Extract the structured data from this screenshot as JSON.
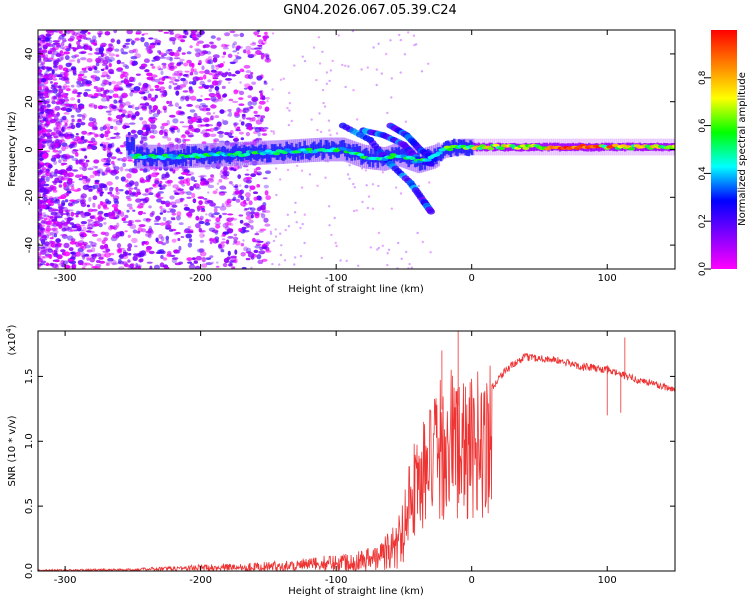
{
  "title": "GN04.2026.067.05.39.C24",
  "chart_data": [
    {
      "type": "heatmap",
      "xlabel": "Height of straight line (km)",
      "ylabel": "Frequency (Hz)",
      "xlim": [
        -320,
        150
      ],
      "ylim": [
        -50,
        50
      ],
      "xticks": [
        -300,
        -200,
        -100,
        0,
        100
      ],
      "yticks": [
        -40,
        -20,
        0,
        20,
        40
      ],
      "colorbar": {
        "label": "Normalized spectral amplitude",
        "range": [
          0,
          1
        ],
        "ticks": [
          "0.0",
          "0.2",
          "0.4",
          "0.6",
          "0.8"
        ],
        "colors": [
          "#ff00ff",
          "#8000ff",
          "#0000ff",
          "#00ffff",
          "#00ff00",
          "#ffff00",
          "#ff8000",
          "#ff0000"
        ]
      },
      "ridge": [
        {
          "x": -250,
          "f": -3
        },
        {
          "x": -220,
          "f": -3
        },
        {
          "x": -180,
          "f": -2
        },
        {
          "x": -140,
          "f": -1
        },
        {
          "x": -110,
          "f": 0
        },
        {
          "x": -95,
          "f": 0
        },
        {
          "x": -80,
          "f": -3
        },
        {
          "x": -65,
          "f": -4
        },
        {
          "x": -55,
          "f": -2
        },
        {
          "x": -40,
          "f": -5
        },
        {
          "x": -28,
          "f": -3
        },
        {
          "x": -20,
          "f": 0
        },
        {
          "x": -10,
          "f": 1
        },
        {
          "x": 0,
          "f": 1
        },
        {
          "x": 50,
          "f": 1
        },
        {
          "x": 100,
          "f": 1
        },
        {
          "x": 150,
          "f": 1
        }
      ]
    },
    {
      "type": "line",
      "xlabel": "Height of straight line (km)",
      "ylabel": "SNR (10 * v/v)",
      "yscale_label": "(x10",
      "yscale_exp": "4",
      "xlim": [
        -320,
        150
      ],
      "ylim": [
        0,
        1.85
      ],
      "xticks": [
        -300,
        -200,
        -100,
        0,
        100
      ],
      "yticks": [
        "0.0",
        "0.5",
        "1.0",
        "1.5"
      ],
      "color": "#ee3333",
      "envelope": [
        {
          "x": -320,
          "y": 0.01
        },
        {
          "x": -250,
          "y": 0.02
        },
        {
          "x": -200,
          "y": 0.05
        },
        {
          "x": -150,
          "y": 0.07
        },
        {
          "x": -120,
          "y": 0.1
        },
        {
          "x": -90,
          "y": 0.15
        },
        {
          "x": -70,
          "y": 0.2
        },
        {
          "x": -55,
          "y": 0.4
        },
        {
          "x": -45,
          "y": 0.8
        },
        {
          "x": -35,
          "y": 1.0
        },
        {
          "x": -25,
          "y": 1.2
        },
        {
          "x": -15,
          "y": 1.35
        },
        {
          "x": -5,
          "y": 1.2
        },
        {
          "x": 10,
          "y": 1.35
        },
        {
          "x": 25,
          "y": 1.55
        },
        {
          "x": 40,
          "y": 1.65
        },
        {
          "x": 60,
          "y": 1.63
        },
        {
          "x": 80,
          "y": 1.58
        },
        {
          "x": 100,
          "y": 1.55
        },
        {
          "x": 120,
          "y": 1.48
        },
        {
          "x": 150,
          "y": 1.4
        }
      ],
      "spikes": [
        {
          "x": -10,
          "y": 1.85
        },
        {
          "x": -22,
          "y": 1.7
        },
        {
          "x": 100,
          "y": 1.2
        },
        {
          "x": 110,
          "y": 1.22
        },
        {
          "x": 113,
          "y": 1.8
        }
      ]
    }
  ]
}
